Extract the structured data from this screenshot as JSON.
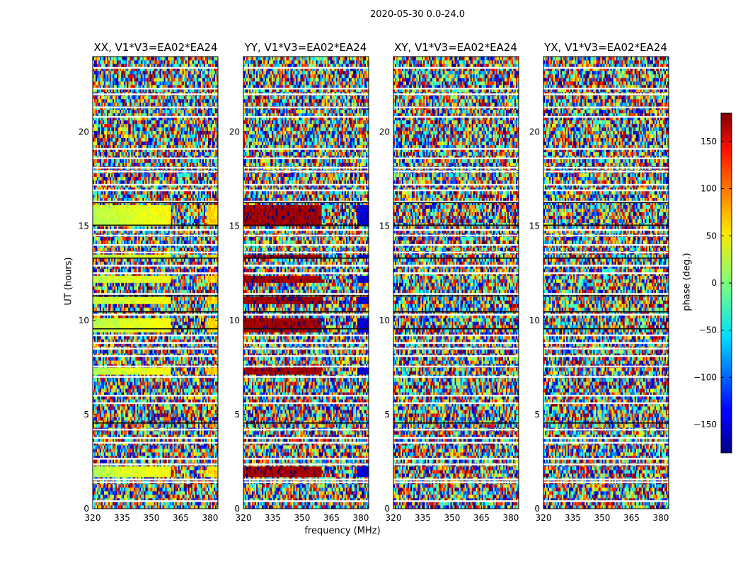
{
  "chart_data": {
    "type": "heatmap",
    "suptitle": "2020-05-30 0.0-24.0",
    "ylabel": "UT (hours)",
    "xlabel": "frequency (MHz)",
    "colorbar": {
      "label": "phase (deg.)",
      "range": [
        -180,
        180
      ],
      "ticks": [
        -150,
        -100,
        -50,
        0,
        50,
        100,
        150
      ],
      "tick_labels": [
        "−150",
        "−100",
        "−50",
        "0",
        "50",
        "100",
        "150"
      ],
      "colormap": "jet"
    },
    "xlim": [
      320,
      384
    ],
    "ylim": [
      0,
      24
    ],
    "xticks": [
      320,
      335,
      350,
      365,
      380
    ],
    "xtick_labels": [
      "320",
      "335",
      "350",
      "365",
      "380"
    ],
    "yticks": [
      0,
      5,
      10,
      15,
      20
    ],
    "ytick_labels": [
      "0",
      "5",
      "10",
      "15",
      "20"
    ],
    "panels": [
      {
        "title": "XX, V1*V3=EA02*EA24",
        "coherent_phase_deg": 20,
        "coherent_time_bands": [
          [
            1.6,
            2.2
          ],
          [
            7.2,
            7.5
          ],
          [
            9.4,
            10.2
          ],
          [
            10.8,
            11.2
          ],
          [
            12.0,
            12.4
          ],
          [
            13.3,
            13.5
          ],
          [
            15.0,
            16.2
          ]
        ]
      },
      {
        "title": "YY, V1*V3=EA02*EA24",
        "coherent_phase_deg": 170,
        "coherent_time_bands": [
          [
            1.6,
            2.2
          ],
          [
            7.2,
            7.5
          ],
          [
            9.4,
            10.2
          ],
          [
            10.8,
            11.2
          ],
          [
            12.0,
            12.4
          ],
          [
            13.3,
            13.5
          ],
          [
            15.0,
            16.2
          ]
        ]
      },
      {
        "title": "XY, V1*V3=EA02*EA24",
        "coherent_phase_deg": null,
        "coherent_time_bands": []
      },
      {
        "title": "YX, V1*V3=EA02*EA24",
        "coherent_phase_deg": null,
        "coherent_time_bands": []
      }
    ]
  }
}
